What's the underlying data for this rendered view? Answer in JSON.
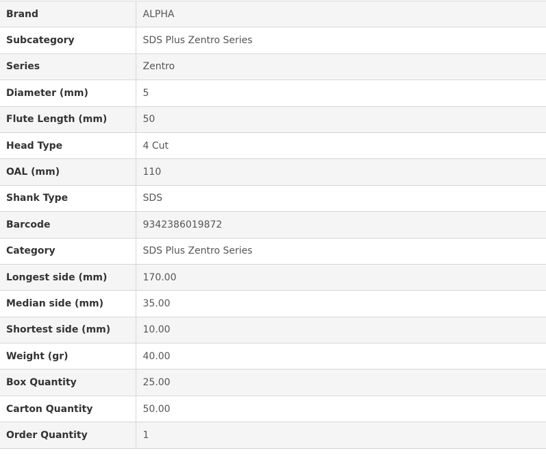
{
  "specs": [
    {
      "label": "Brand",
      "value": "ALPHA"
    },
    {
      "label": "Subcategory",
      "value": "SDS Plus Zentro Series"
    },
    {
      "label": "Series",
      "value": "Zentro"
    },
    {
      "label": "Diameter (mm)",
      "value": "5"
    },
    {
      "label": "Flute Length (mm)",
      "value": "50"
    },
    {
      "label": "Head Type",
      "value": "4 Cut"
    },
    {
      "label": "OAL (mm)",
      "value": "110"
    },
    {
      "label": "Shank Type",
      "value": "SDS"
    },
    {
      "label": "Barcode",
      "value": "9342386019872"
    },
    {
      "label": "Category",
      "value": "SDS Plus Zentro Series"
    },
    {
      "label": "Longest side (mm)",
      "value": "170.00"
    },
    {
      "label": "Median side (mm)",
      "value": "35.00"
    },
    {
      "label": "Shortest side (mm)",
      "value": "10.00"
    },
    {
      "label": "Weight (gr)",
      "value": "40.00"
    },
    {
      "label": "Box Quantity",
      "value": "25.00"
    },
    {
      "label": "Carton Quantity",
      "value": "50.00"
    },
    {
      "label": "Order Quantity",
      "value": "1"
    }
  ]
}
